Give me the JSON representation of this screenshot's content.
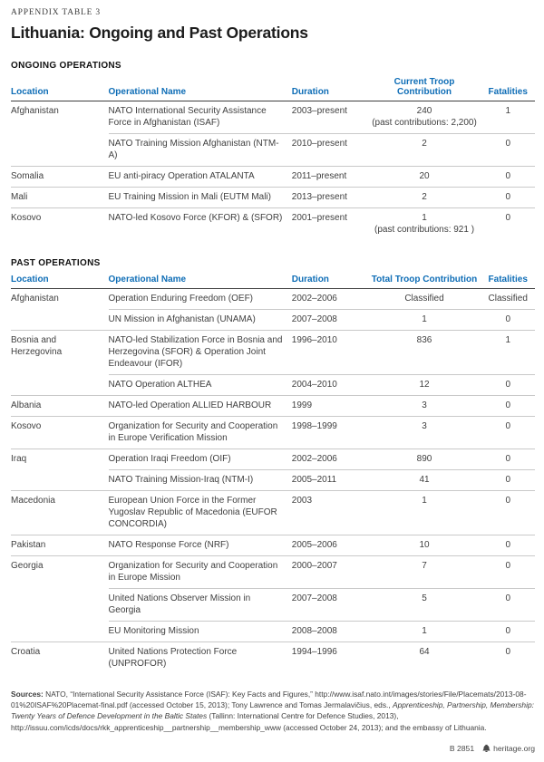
{
  "page": {
    "eyebrow": "APPENDIX TABLE 3",
    "title": "Lithuania: Ongoing and Past Operations"
  },
  "colors": {
    "accent_blue": "#0e6db6",
    "rule_dark": "#3f3f3f",
    "rule_light": "#c9c9c9",
    "body_text": "#3f3f3f"
  },
  "tables": [
    {
      "section_label": "ONGOING OPERATIONS",
      "columns": [
        "Location",
        "Operational Name",
        "Duration",
        "Current Troop Contribution",
        "Fatalities"
      ],
      "groups": [
        {
          "location": "Afghanistan",
          "rows": [
            {
              "name": "NATO International Security Assistance Force in Afghanistan (ISAF)",
              "duration": "2003–present",
              "troops": "240",
              "troops_note": "(past contributions: 2,200)",
              "fatalities": "1"
            },
            {
              "name": "NATO Training Mission Afghanistan (NTM-A)",
              "duration": "2010–present",
              "troops": "2",
              "fatalities": "0"
            }
          ]
        },
        {
          "location": "Somalia",
          "rows": [
            {
              "name": "EU anti-piracy Operation ATALANTA",
              "duration": "2011–present",
              "troops": "20",
              "fatalities": "0"
            }
          ]
        },
        {
          "location": "Mali",
          "rows": [
            {
              "name": "EU Training Mission in Mali (EUTM Mali)",
              "duration": "2013–present",
              "troops": "2",
              "fatalities": "0"
            }
          ]
        },
        {
          "location": "Kosovo",
          "rows": [
            {
              "name": "NATO-led Kosovo Force (KFOR) & (SFOR)",
              "duration": "2001–present",
              "troops": "1",
              "troops_note": "(past contributions: 921 )",
              "fatalities": "0"
            }
          ]
        }
      ]
    },
    {
      "section_label": "PAST OPERATIONS",
      "columns": [
        "Location",
        "Operational Name",
        "Duration",
        "Total Troop Contribution",
        "Fatalities"
      ],
      "groups": [
        {
          "location": "Afghanistan",
          "rows": [
            {
              "name": "Operation Enduring Freedom (OEF)",
              "duration": "2002–2006",
              "troops": "Classified",
              "fatalities": "Classified"
            },
            {
              "name": "UN Mission in Afghanistan (UNAMA)",
              "duration": "2007–2008",
              "troops": "1",
              "fatalities": "0"
            }
          ]
        },
        {
          "location": "Bosnia and Herzegovina",
          "rows": [
            {
              "name": "NATO-led Stabilization Force in Bosnia and Herzegovina (SFOR) & Operation Joint Endeavour (IFOR)",
              "duration": "1996–2010",
              "troops": "836",
              "fatalities": "1"
            },
            {
              "name": "NATO Operation ALTHEA",
              "duration": "2004–2010",
              "troops": "12",
              "fatalities": "0"
            }
          ]
        },
        {
          "location": "Albania",
          "rows": [
            {
              "name": "NATO-led Operation ALLIED HARBOUR",
              "duration": "1999",
              "troops": "3",
              "fatalities": "0"
            }
          ]
        },
        {
          "location": "Kosovo",
          "rows": [
            {
              "name": "Organization for Security and Cooperation in Europe Verification Mission",
              "duration": "1998–1999",
              "troops": "3",
              "fatalities": "0"
            }
          ]
        },
        {
          "location": "Iraq",
          "rows": [
            {
              "name": "Operation Iraqi Freedom (OIF)",
              "duration": "2002–2006",
              "troops": "890",
              "fatalities": "0"
            },
            {
              "name": "NATO Training Mission-Iraq (NTM-I)",
              "duration": "2005–2011",
              "troops": "41",
              "fatalities": "0"
            }
          ]
        },
        {
          "location": "Macedonia",
          "rows": [
            {
              "name": "European Union Force in the Former Yugoslav Republic of Macedonia (EUFOR CONCORDIA)",
              "duration": "2003",
              "troops": "1",
              "fatalities": "0"
            }
          ]
        },
        {
          "location": "Pakistan",
          "rows": [
            {
              "name": "NATO Response Force (NRF)",
              "duration": "2005–2006",
              "troops": "10",
              "fatalities": "0"
            }
          ]
        },
        {
          "location": "Georgia",
          "rows": [
            {
              "name": "Organization for Security and Cooperation in Europe Mission",
              "duration": "2000–2007",
              "troops": "7",
              "fatalities": "0"
            },
            {
              "name": "United Nations Observer Mission in Georgia",
              "duration": "2007–2008",
              "troops": "5",
              "fatalities": "0"
            },
            {
              "name": "EU Monitoring Mission",
              "duration": "2008–2008",
              "troops": "1",
              "fatalities": "0"
            }
          ]
        },
        {
          "location": "Croatia",
          "rows": [
            {
              "name": "United Nations Protection Force (UNPROFOR)",
              "duration": "1994–1996",
              "troops": "64",
              "fatalities": "0"
            }
          ]
        }
      ]
    }
  ],
  "sources": {
    "label": "Sources:",
    "part1": " NATO, “International Security Assistance Force (ISAF): Key Facts and Figures,” http://www.isaf.nato.int/images/stories/File/Placemats/2013-08-01%20ISAF%20Placemat-final.pdf (accessed October 15, 2013); Tony Lawrence and Tomas Jermalavičius, eds., ",
    "italic": "Apprenticeship, Partnership, Membership: Twenty Years of Defence Development in the Baltic States",
    "part2": " (Tallinn: International Centre for Defence Studies, 2013), http://issuu.com/icds/docs/rkk_apprenticeship__partnership__membership_www (accessed October 24, 2013); and the embassy of Lithuania."
  },
  "footer": {
    "doc_id": "B 2851",
    "icon": "liberty-bell-icon",
    "site": "heritage.org"
  }
}
